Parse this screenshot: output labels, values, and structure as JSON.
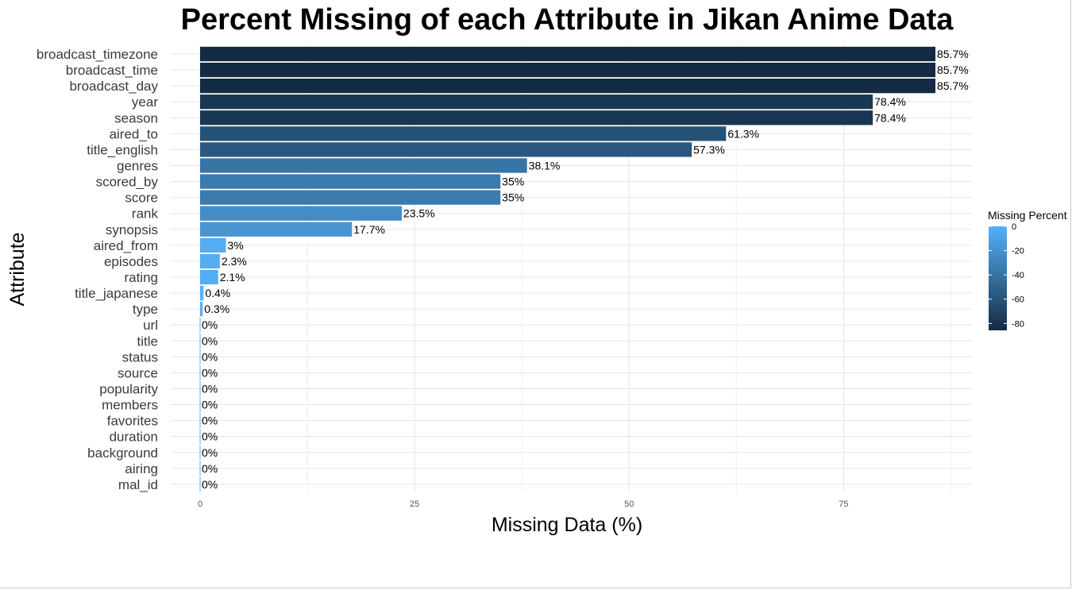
{
  "chart_data": {
    "type": "bar",
    "orientation": "horizontal",
    "title": "Percent Missing of each Attribute in Jikan Anime Data",
    "xlabel": "Missing Data (%)",
    "ylabel": "Attribute",
    "xlim": [
      0,
      90
    ],
    "x_ticks": [
      0,
      25,
      50,
      75
    ],
    "x_tick_labels": [
      "0",
      "25",
      "50",
      "75"
    ],
    "grid": true,
    "categories": [
      "broadcast_timezone",
      "broadcast_time",
      "broadcast_day",
      "year",
      "season",
      "aired_to",
      "title_english",
      "genres",
      "scored_by",
      "score",
      "rank",
      "synopsis",
      "aired_from",
      "episodes",
      "rating",
      "title_japanese",
      "type",
      "url",
      "title",
      "status",
      "source",
      "popularity",
      "members",
      "favorites",
      "duration",
      "background",
      "airing",
      "mal_id"
    ],
    "values": [
      85.7,
      85.7,
      85.7,
      78.4,
      78.4,
      61.3,
      57.3,
      38.1,
      35,
      35,
      23.5,
      17.7,
      3,
      2.3,
      2.1,
      0.4,
      0.3,
      0,
      0,
      0,
      0,
      0,
      0,
      0,
      0,
      0,
      0,
      0
    ],
    "value_labels": [
      "85.7%",
      "85.7%",
      "85.7%",
      "78.4%",
      "78.4%",
      "61.3%",
      "57.3%",
      "38.1%",
      "35%",
      "35%",
      "23.5%",
      "17.7%",
      "3%",
      "2.3%",
      "2.1%",
      "0.4%",
      "0.3%",
      "0%",
      "0%",
      "0%",
      "0%",
      "0%",
      "0%",
      "0%",
      "0%",
      "0%",
      "0%",
      "0%"
    ],
    "legend": {
      "title": "Missing Percent",
      "position": "right",
      "ticks": [
        0,
        -20,
        -40,
        -60,
        -80
      ],
      "tick_labels": [
        "0",
        "-20",
        "-40",
        "-60",
        "-80"
      ],
      "range": [
        -85.7,
        0
      ],
      "color_low": "#132B43",
      "color_high": "#56B1F7"
    }
  }
}
